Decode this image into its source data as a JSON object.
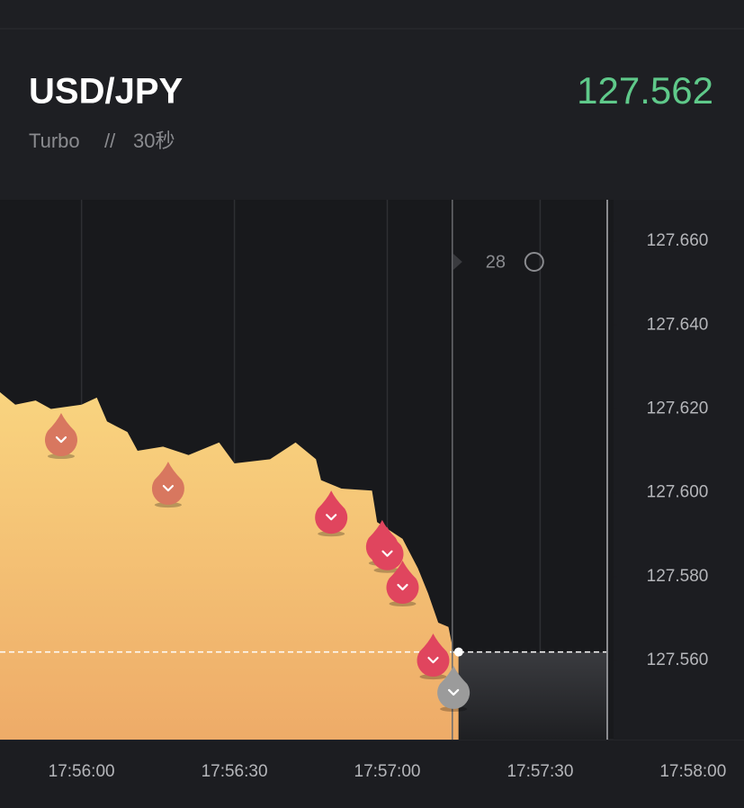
{
  "header": {
    "symbol": "USD/JPY",
    "mode": "Turbo",
    "separator": "//",
    "duration": "30秒",
    "price": "127.562"
  },
  "chart_data": {
    "type": "area",
    "x": [
      "17:55:44",
      "17:55:47",
      "17:55:51",
      "17:55:54",
      "17:56:00",
      "17:56:03",
      "17:56:05",
      "17:56:09",
      "17:56:11",
      "17:56:16",
      "17:56:21",
      "17:56:27",
      "17:56:30",
      "17:56:37",
      "17:56:42",
      "17:56:46",
      "17:56:47",
      "17:56:51",
      "17:56:57",
      "17:56:58",
      "17:57:03",
      "17:57:06",
      "17:57:08",
      "17:57:10",
      "17:57:12",
      "17:57:13",
      "17:57:14"
    ],
    "values": [
      127.624,
      127.621,
      127.622,
      127.62,
      127.621,
      127.6227,
      127.617,
      127.6145,
      127.61,
      127.611,
      127.609,
      127.612,
      127.607,
      127.608,
      127.612,
      127.608,
      127.603,
      127.601,
      127.6005,
      127.593,
      127.589,
      127.582,
      127.576,
      127.569,
      127.568,
      127.562,
      127.562
    ],
    "colors": [
      "#f9d47f",
      "#eeab68"
    ],
    "xlim": [
      "17:55:44",
      "17:58:10"
    ],
    "xticks": [
      "17:56:00",
      "17:56:30",
      "17:57:00",
      "17:57:30",
      "17:58:00"
    ],
    "ylim": [
      127.5411,
      127.6699
    ],
    "yticks": [
      {
        "value": 127.66,
        "label": "127.660"
      },
      {
        "value": 127.64,
        "label": "127.640"
      },
      {
        "value": 127.62,
        "label": "127.620"
      },
      {
        "value": 127.6,
        "label": "127.600"
      },
      {
        "value": 127.58,
        "label": "127.580"
      },
      {
        "value": 127.56,
        "label": "127.560"
      }
    ],
    "grid": true,
    "countdown": 28,
    "markers": [
      {
        "x": "17:55:56",
        "y": 127.613,
        "color": "#d8775f"
      },
      {
        "x": "17:56:17",
        "y": 127.6014,
        "color": "#d8775f"
      },
      {
        "x": "17:56:49",
        "y": 127.5945,
        "color": "#e0455e"
      },
      {
        "x": "17:56:59",
        "y": 127.5875,
        "color": "#e0455e"
      },
      {
        "x": "17:57:00",
        "y": 127.5858,
        "color": "#e0455e"
      },
      {
        "x": "17:57:03",
        "y": 127.5778,
        "color": "#e0455e"
      },
      {
        "x": "17:57:09",
        "y": 127.5604,
        "color": "#e0455e"
      },
      {
        "x": "17:57:13",
        "y": 127.5527,
        "color": "#9b9b9b"
      }
    ]
  }
}
